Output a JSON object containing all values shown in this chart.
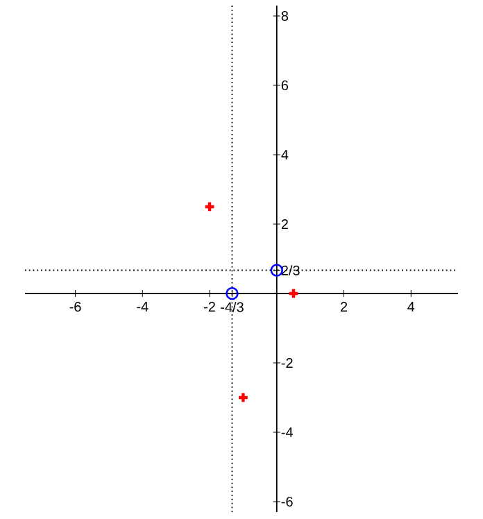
{
  "chart_data": {
    "type": "scatter",
    "series": [
      {
        "color": "#ff0000",
        "marker": "cross",
        "x": [
          -2,
          0.5,
          -1
        ],
        "values": [
          2.5,
          0,
          -3
        ]
      },
      {
        "color": "#0000ff",
        "marker": "circle",
        "x": [
          -1.33,
          0
        ],
        "values": [
          0,
          0.67
        ]
      }
    ],
    "xlim": [
      -7.5,
      5.4
    ],
    "ylim": [
      -6.3,
      8.3
    ],
    "xticks": [
      -6,
      -4,
      -2,
      {
        "value": -1.33,
        "label": "-4/3"
      },
      2,
      4
    ],
    "yticks": [
      -6,
      -4,
      -2,
      {
        "value": 0.67,
        "label": "2/3"
      },
      2,
      4,
      6,
      8
    ],
    "ref_lines": [
      {
        "axis": "x",
        "value": -1.33,
        "line_style": "dotted"
      },
      {
        "axis": "y",
        "value": 0.67,
        "line_style": "dotted"
      }
    ],
    "grid": false
  }
}
